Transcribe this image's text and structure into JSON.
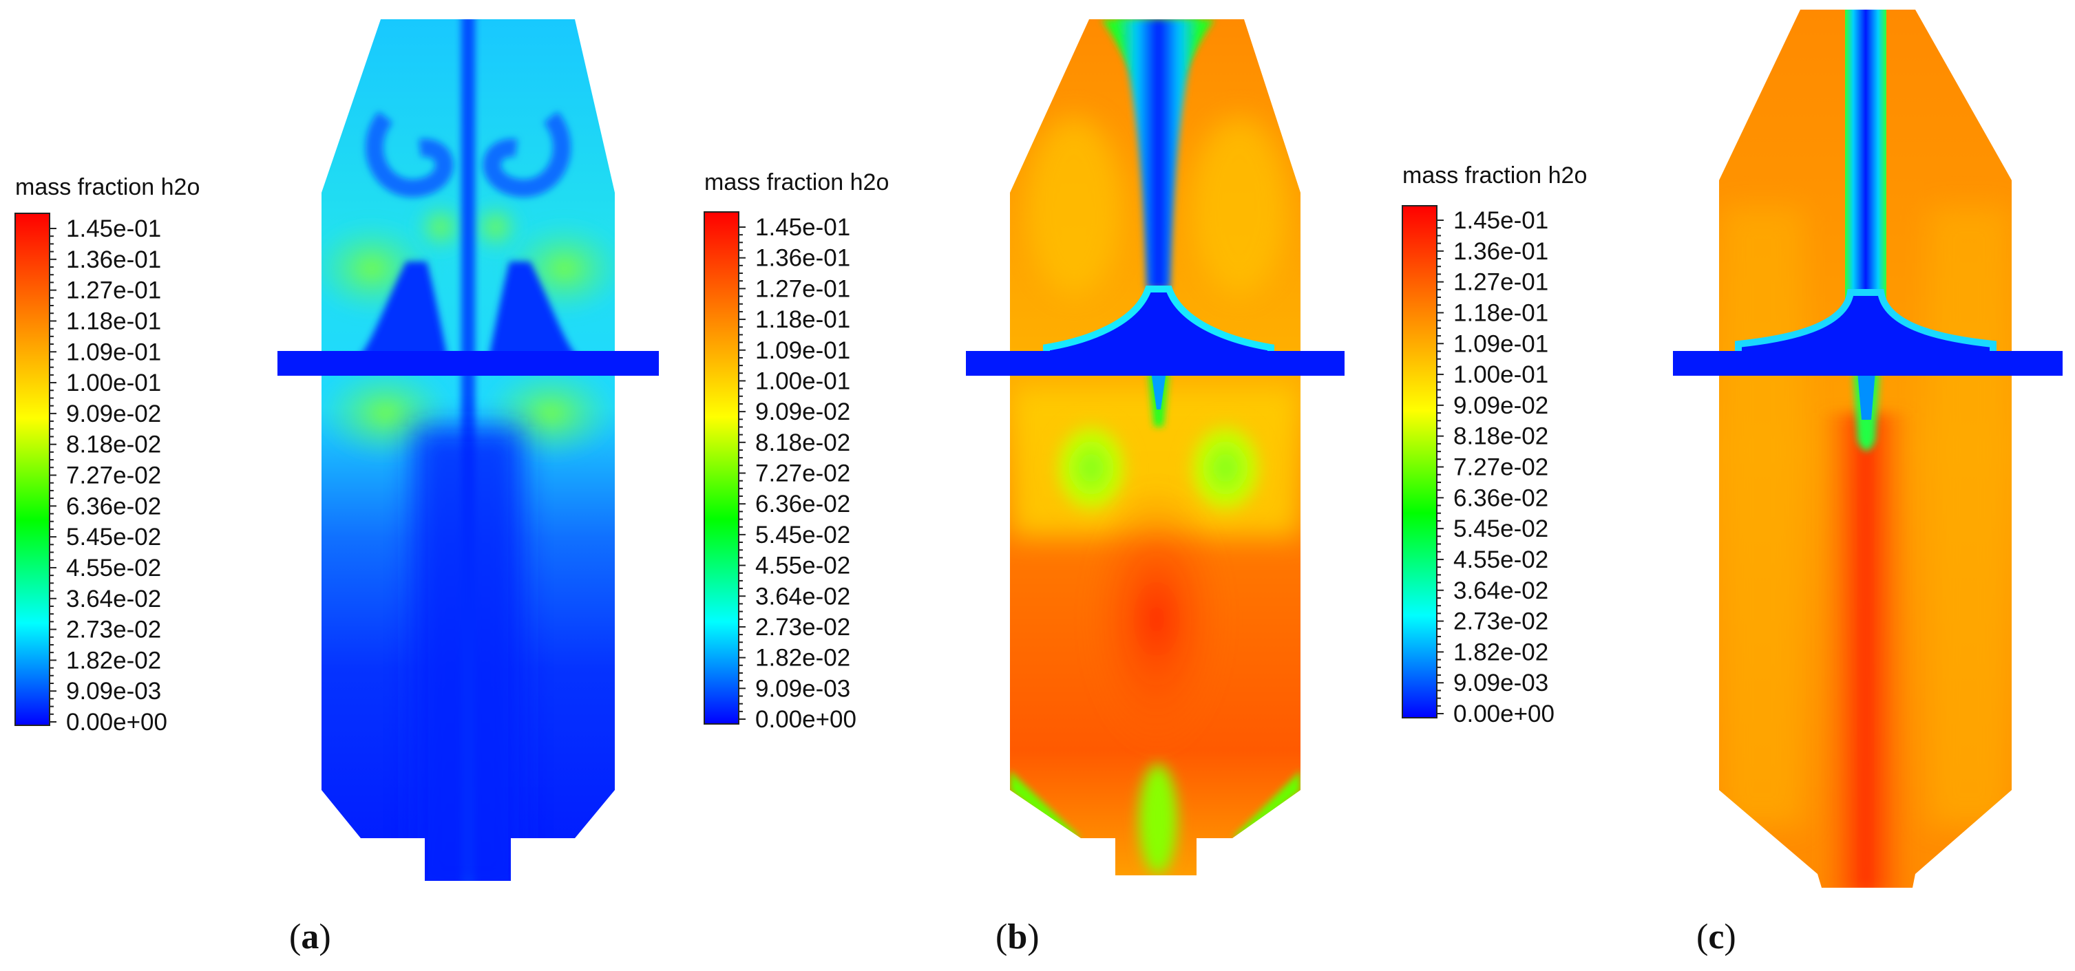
{
  "legend": {
    "title": "mass fraction h2o",
    "ticks": [
      "1.45e-01",
      "1.36e-01",
      "1.27e-01",
      "1.18e-01",
      "1.09e-01",
      "1.00e-01",
      "9.09e-02",
      "8.18e-02",
      "7.27e-02",
      "6.36e-02",
      "5.45e-02",
      "4.55e-02",
      "3.64e-02",
      "2.73e-02",
      "1.82e-02",
      "9.09e-03",
      "0.00e+00"
    ],
    "colors": [
      "#ff0000",
      "#ff4000",
      "#ff8000",
      "#ffbf00",
      "#ffff00",
      "#80ff00",
      "#00ff00",
      "#00ff80",
      "#00ffff",
      "#0080ff",
      "#0000ff"
    ]
  },
  "panels": [
    {
      "id": "a",
      "label_open": "(",
      "label_letter": "a",
      "label_close": ")"
    },
    {
      "id": "b",
      "label_open": "(",
      "label_letter": "b",
      "label_close": ")"
    },
    {
      "id": "c",
      "label_open": "(",
      "label_letter": "c",
      "label_close": ")"
    }
  ],
  "colors": {
    "blue": "#0015ff",
    "cyan": "#1fe3ff",
    "green": "#33ff33",
    "yellow": "#ffe000",
    "orange": "#ff8a00",
    "red": "#ff3a00"
  }
}
